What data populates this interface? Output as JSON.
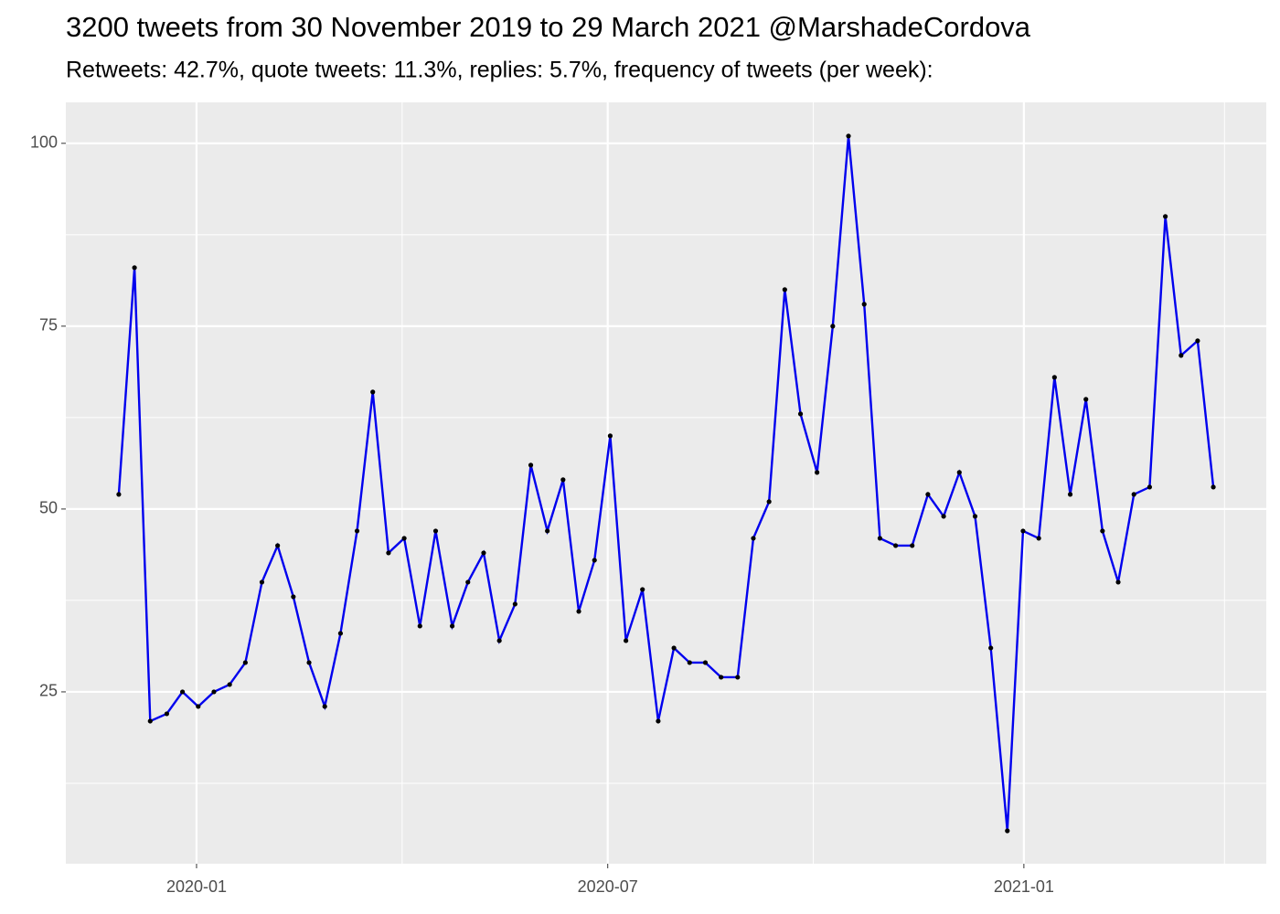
{
  "chart_data": {
    "type": "line",
    "title": "3200 tweets from 30 November 2019 to 29 March 2021 @MarshadeCordova",
    "subtitle": "Retweets: 42.7%, quote tweets: 11.3%, replies: 5.7%, frequency of tweets (per week):",
    "x": [
      2019.906,
      2019.925,
      2019.944,
      2019.964,
      2019.983,
      2020.002,
      2020.021,
      2020.04,
      2020.059,
      2020.079,
      2020.098,
      2020.117,
      2020.136,
      2020.155,
      2020.174,
      2020.194,
      2020.213,
      2020.232,
      2020.251,
      2020.27,
      2020.289,
      2020.309,
      2020.328,
      2020.347,
      2020.366,
      2020.385,
      2020.404,
      2020.424,
      2020.443,
      2020.462,
      2020.481,
      2020.5,
      2020.519,
      2020.539,
      2020.558,
      2020.577,
      2020.596,
      2020.615,
      2020.634,
      2020.654,
      2020.673,
      2020.692,
      2020.711,
      2020.73,
      2020.75,
      2020.769,
      2020.788,
      2020.807,
      2020.826,
      2020.845,
      2020.865,
      2020.884,
      2020.903,
      2020.922,
      2020.941,
      2020.96,
      2020.98,
      2020.999,
      2021.018,
      2021.037,
      2021.056,
      2021.075,
      2021.095,
      2021.114,
      2021.133,
      2021.152,
      2021.171,
      2021.19,
      2021.21,
      2021.229
    ],
    "series": [
      {
        "color": "#0000ee",
        "point_color": "#000000",
        "values": [
          52,
          83,
          21,
          22,
          25,
          23,
          25,
          26,
          29,
          40,
          45,
          38,
          29,
          23,
          33,
          47,
          66,
          44,
          46,
          34,
          47,
          34,
          40,
          44,
          32,
          37,
          56,
          47,
          54,
          36,
          43,
          60,
          32,
          39,
          21,
          31,
          29,
          29,
          27,
          27,
          46,
          51,
          80,
          63,
          55,
          75,
          101,
          78,
          46,
          45,
          45,
          52,
          49,
          55,
          49,
          31,
          6,
          47,
          46,
          68,
          52,
          65,
          47,
          40,
          52,
          53,
          90,
          71,
          73,
          53
        ]
      }
    ],
    "xlim": [
      2019.842,
      2021.293
    ],
    "xticks": [
      {
        "value": 2020.0,
        "label": "2020-01"
      },
      {
        "value": 2020.497,
        "label": "2020-07"
      },
      {
        "value": 2021.0,
        "label": "2021-01"
      }
    ],
    "ylim": [
      1.5,
      105.6
    ],
    "yticks": [
      25,
      50,
      75,
      100
    ],
    "grid": true
  }
}
